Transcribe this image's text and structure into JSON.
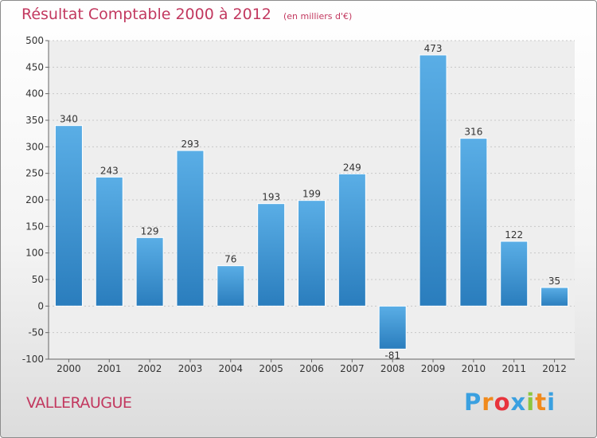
{
  "chart_data": {
    "type": "bar",
    "title": "Résultat Comptable 2000 à 2012",
    "subtitle": "(en milliers d'€)",
    "categories": [
      "2000",
      "2001",
      "2002",
      "2003",
      "2004",
      "2005",
      "2006",
      "2007",
      "2008",
      "2009",
      "2010",
      "2011",
      "2012"
    ],
    "values": [
      340,
      243,
      129,
      293,
      76,
      193,
      199,
      249,
      -81,
      473,
      316,
      122,
      35
    ],
    "ylim": [
      -100,
      500
    ],
    "yticks": [
      -100,
      -50,
      0,
      50,
      100,
      150,
      200,
      250,
      300,
      350,
      400,
      450,
      500
    ],
    "grid": true,
    "xlabel": "",
    "ylabel": "",
    "bar_color_top": "#5aaee6",
    "bar_color_bottom": "#2a7dbd"
  },
  "location": "VALLERAUGUE",
  "logo": {
    "text": "Proxiti",
    "letters": [
      "P",
      "r",
      "o",
      "x",
      "i",
      "t",
      "i"
    ],
    "colors": [
      "#3aa0e0",
      "#f08a1c",
      "#e8343c",
      "#3aa0e0",
      "#8cc63f",
      "#f08a1c",
      "#3aa0e0"
    ]
  }
}
